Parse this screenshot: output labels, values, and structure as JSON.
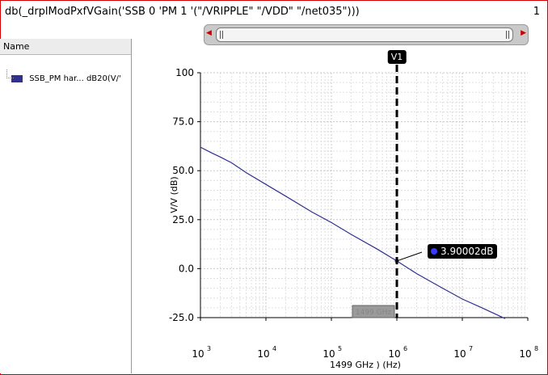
{
  "window": {
    "title": "db(_drplModPxfVGain('SSB 0 'PM 1 '(\"/VRIPPLE\" \"/VDD\" \"/net035\")))",
    "page_number": "1"
  },
  "sidebar": {
    "column_header": "Name",
    "items": [
      {
        "label": "SSB_PM har... dB20(V/'",
        "color": "#303090"
      }
    ]
  },
  "cursor": {
    "label": "V1",
    "x": 1000000
  },
  "marker": {
    "label": "3.90002dB",
    "x": 1000000,
    "y": 3.90002
  },
  "x_position_readout": "1499 GHz",
  "chart_data": {
    "type": "line",
    "title": "",
    "xlabel": "1499 GHz ) (Hz)",
    "ylabel": "V/V (dB)",
    "xscale": "log",
    "xlim": [
      1000,
      100000000
    ],
    "ylim": [
      -25,
      100
    ],
    "x_ticks": [
      {
        "value": 1000,
        "base": "10",
        "exp": "3"
      },
      {
        "value": 10000,
        "base": "10",
        "exp": "4"
      },
      {
        "value": 100000,
        "base": "10",
        "exp": "5"
      },
      {
        "value": 1000000,
        "base": "10",
        "exp": "6"
      },
      {
        "value": 10000000,
        "base": "10",
        "exp": "7"
      },
      {
        "value": 100000000,
        "base": "10",
        "exp": "8"
      }
    ],
    "y_ticks": [
      {
        "value": 100,
        "label": "100"
      },
      {
        "value": 75,
        "label": "75.0"
      },
      {
        "value": 50,
        "label": "50.0"
      },
      {
        "value": 25,
        "label": "25.0"
      },
      {
        "value": 0,
        "label": "0.0"
      },
      {
        "value": -25,
        "label": "-25.0"
      }
    ],
    "grid": true,
    "series": [
      {
        "color": "#303090",
        "x": [
          1000,
          1500,
          2000,
          3000,
          5000,
          10000,
          20000,
          50000,
          100000,
          200000,
          500000,
          1000000,
          2000000,
          5000000,
          10000000,
          20000000,
          45000000
        ],
        "y": [
          62,
          59,
          57,
          54,
          49,
          43,
          37,
          29,
          23.5,
          17.5,
          10,
          3.9,
          -2.5,
          -10,
          -15.5,
          -20,
          -25.5
        ]
      }
    ]
  }
}
